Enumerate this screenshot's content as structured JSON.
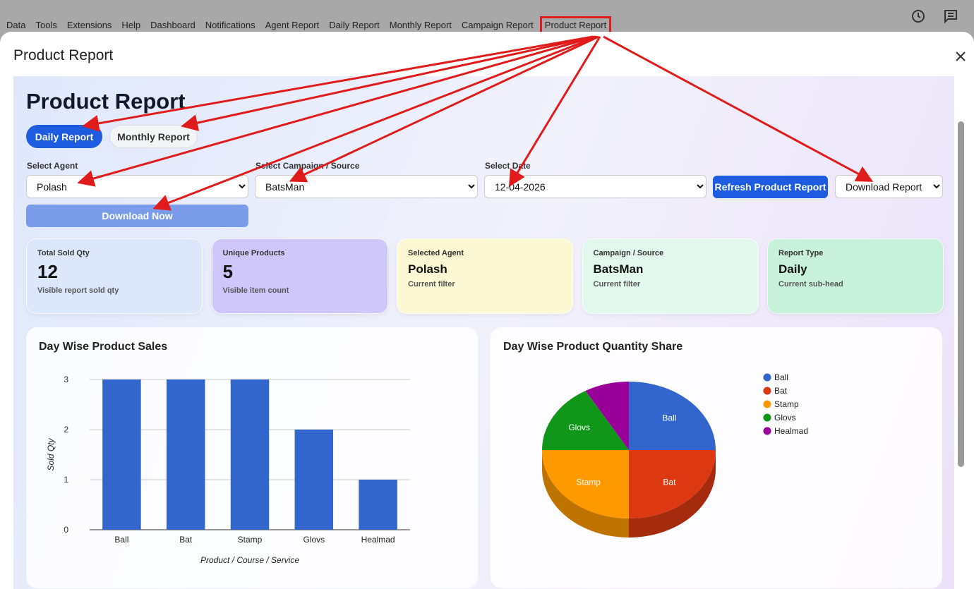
{
  "menu": [
    "Data",
    "Tools",
    "Extensions",
    "Help",
    "Dashboard",
    "Notifications",
    "Agent Report",
    "Daily Report",
    "Monthly Report",
    "Campaign Report",
    "Product Report"
  ],
  "modal": {
    "title": "Product Report"
  },
  "page": {
    "heading": "Product Report",
    "tabs": [
      "Daily Report",
      "Monthly Report"
    ],
    "filters": [
      {
        "label": "Select Agent",
        "value": "Polash"
      },
      {
        "label": "Select Campaign / Source",
        "value": "BatsMan"
      },
      {
        "label": "Select Date",
        "value": "12-04-2026"
      }
    ],
    "refresh_button": "Refresh Product Report",
    "download_select": "Download Report",
    "download_button": "Download Now",
    "cards": [
      {
        "label": "Total Sold Qty",
        "value": 12,
        "note": "Visible report sold qty"
      },
      {
        "label": "Unique Products",
        "value": 5,
        "note": "Visible item count"
      },
      {
        "label": "Selected Agent",
        "value": "Polash",
        "note": "Current filter"
      },
      {
        "label": "Campaign / Source",
        "value": "BatsMan",
        "note": "Current filter"
      },
      {
        "label": "Report Type",
        "value": "Daily",
        "note": "Current sub-head"
      }
    ]
  },
  "chart_data": [
    {
      "type": "bar",
      "title": "Day Wise Product Sales",
      "categories": [
        "Ball",
        "Bat",
        "Stamp",
        "Glovs",
        "Healmad"
      ],
      "values": [
        3,
        3,
        3,
        2,
        1
      ],
      "color": "#3366cc",
      "ylim": [
        0,
        3
      ],
      "yticks": [
        0,
        1,
        2,
        3
      ],
      "grid": true,
      "ylabel": "Sold Qty",
      "xlabel": "Product / Course / Service"
    },
    {
      "type": "pie",
      "title": "Day Wise Product Quantity Share",
      "categories": [
        "Ball",
        "Bat",
        "Stamp",
        "Glovs",
        "Healmad"
      ],
      "values": [
        3,
        3,
        3,
        2,
        1
      ],
      "colors": [
        "#3366cc",
        "#dc3912",
        "#ff9900",
        "#109618",
        "#990099"
      ],
      "legend": "right"
    }
  ]
}
